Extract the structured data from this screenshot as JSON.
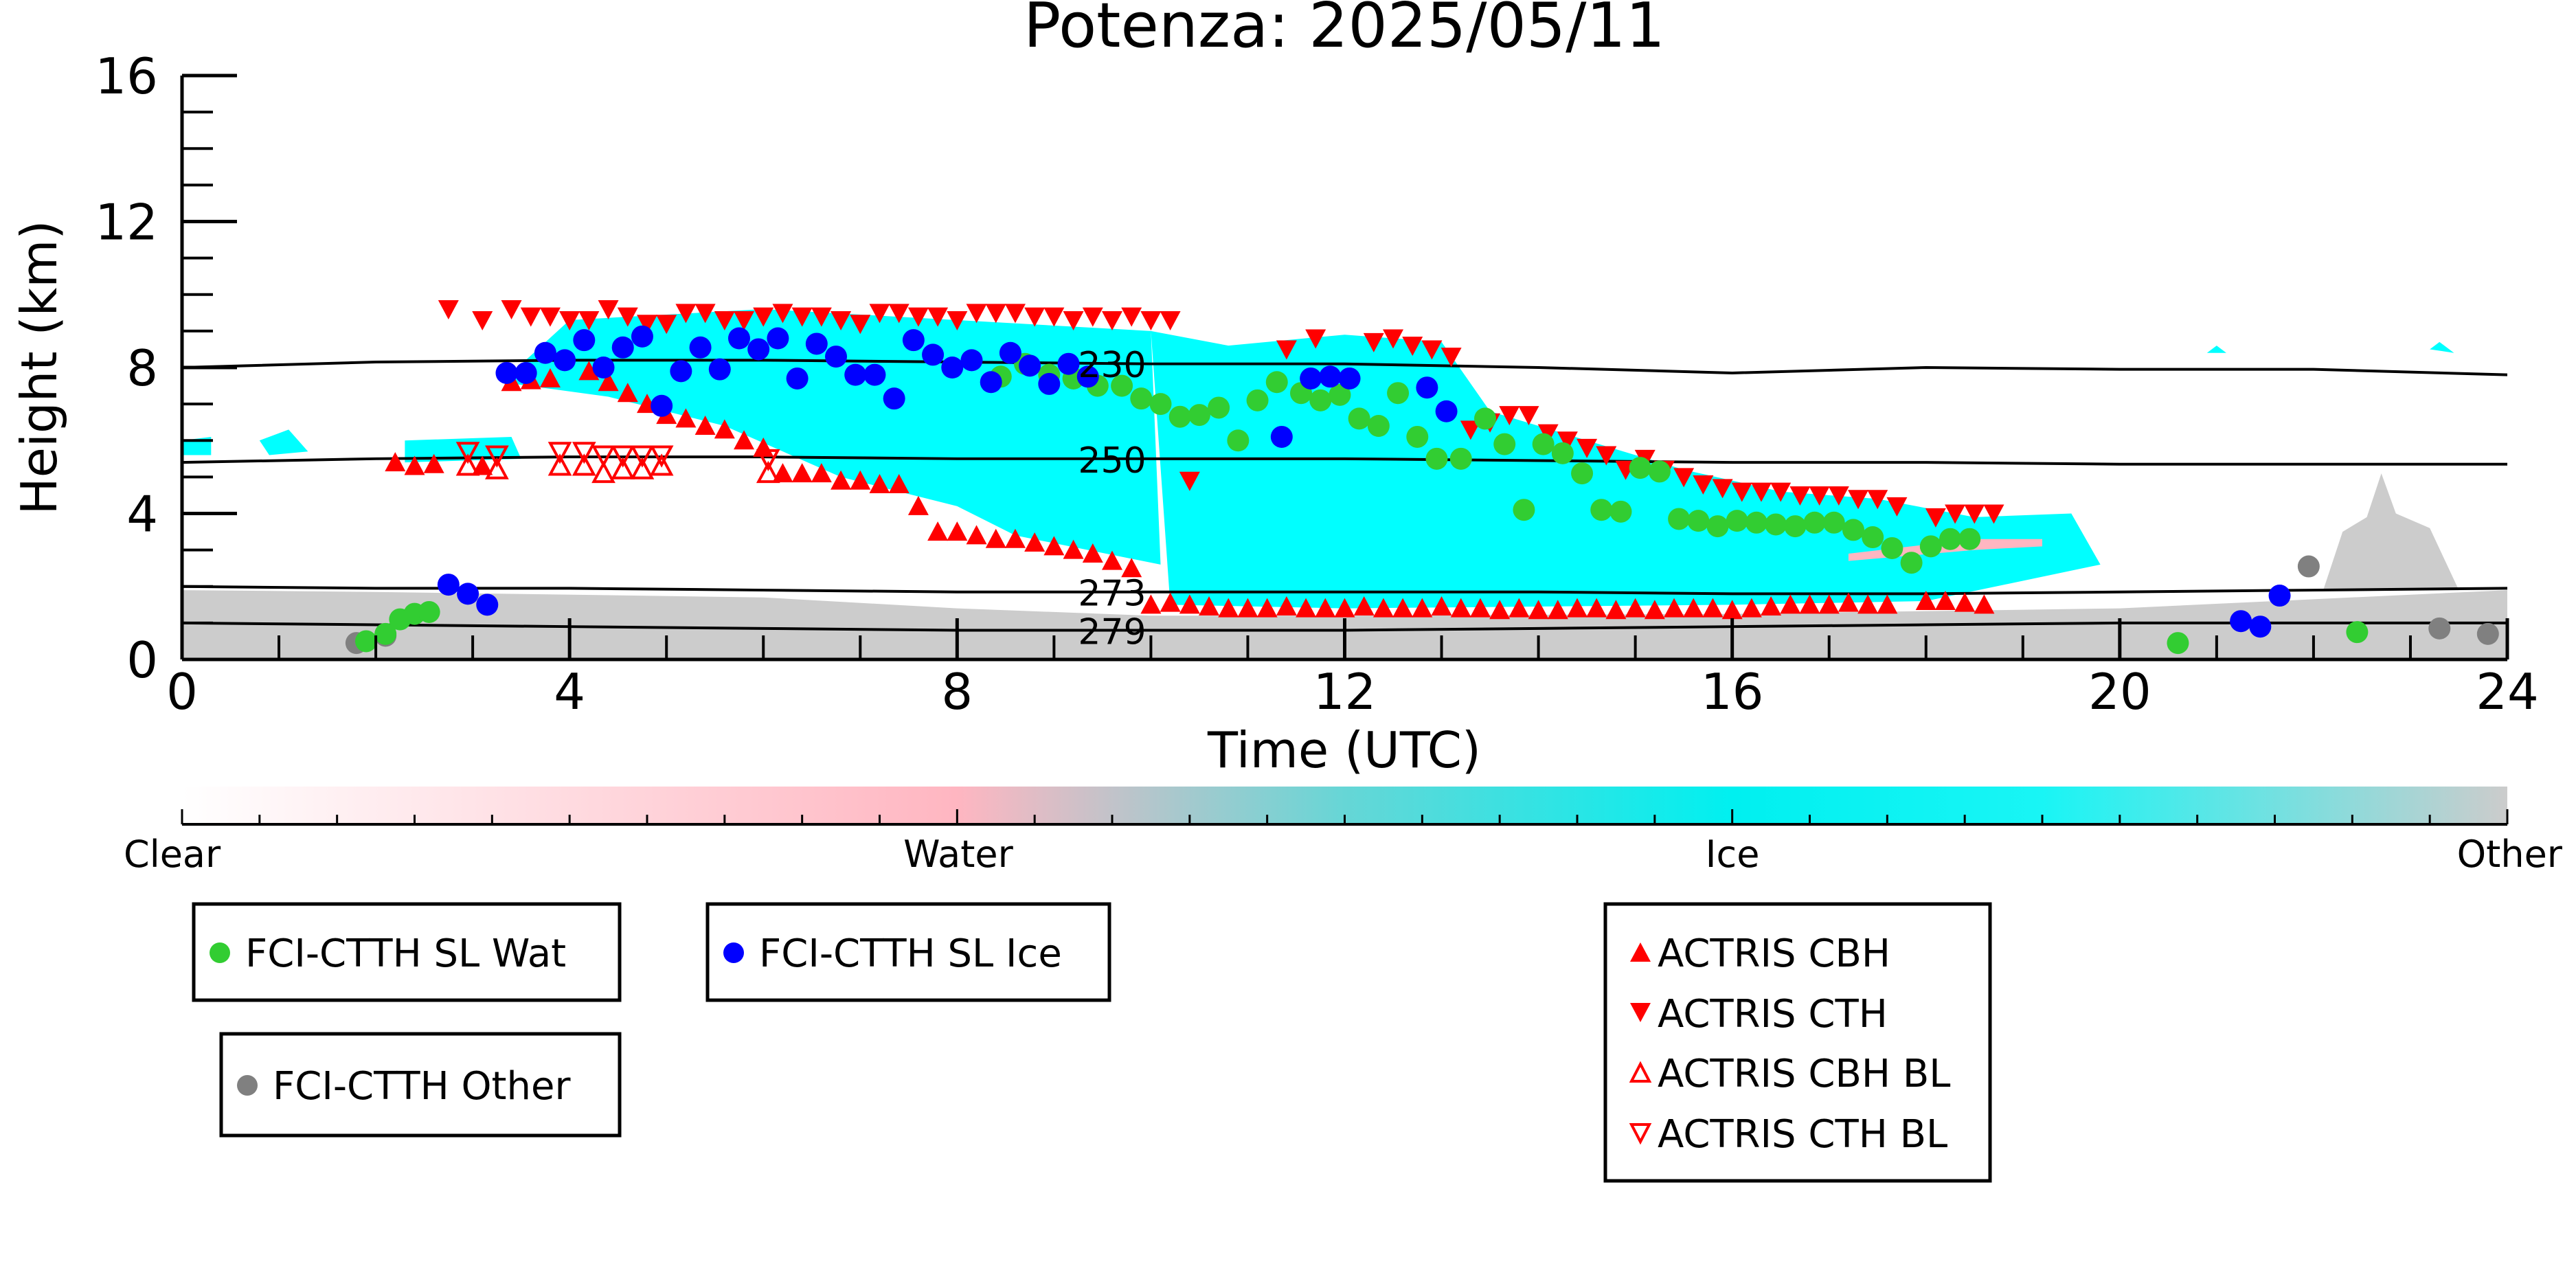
{
  "chart_data": {
    "type": "scatter",
    "title": "Potenza: 2025/05/11",
    "xlabel": "Time (UTC)",
    "ylabel": "Height (km)",
    "xlim": [
      0,
      24
    ],
    "ylim": [
      0,
      16
    ],
    "x_ticks": [
      0,
      4,
      8,
      12,
      16,
      20,
      24
    ],
    "y_ticks": [
      0,
      4,
      8,
      12,
      16
    ],
    "colors": {
      "water": "#ffb6c1",
      "ice": "#00ffff",
      "other": "#cccccc",
      "wat": "#32cd32",
      "icepoint": "#0000ff",
      "otherpoint": "#808080",
      "actris": "#ff0000"
    },
    "colorbar": {
      "labels": [
        "Clear",
        "Water",
        "Ice",
        "Other"
      ]
    },
    "isotherms": [
      {
        "label": "230",
        "x": [
          0,
          2,
          4,
          6,
          8,
          10,
          12,
          14,
          16,
          18,
          20,
          22,
          24
        ],
        "y": [
          8.0,
          8.15,
          8.2,
          8.2,
          8.15,
          8.1,
          8.1,
          8.0,
          7.85,
          8.0,
          7.95,
          7.95,
          7.8
        ]
      },
      {
        "label": "250",
        "x": [
          0,
          2,
          4,
          6,
          8,
          10,
          12,
          14,
          16,
          18,
          20,
          22,
          24
        ],
        "y": [
          5.4,
          5.5,
          5.55,
          5.55,
          5.5,
          5.5,
          5.5,
          5.45,
          5.4,
          5.4,
          5.35,
          5.35,
          5.35
        ]
      },
      {
        "label": "273",
        "x": [
          0,
          2,
          4,
          6,
          8,
          10,
          12,
          14,
          16,
          18,
          20,
          22,
          24
        ],
        "y": [
          2.0,
          1.95,
          1.95,
          1.9,
          1.85,
          1.85,
          1.85,
          1.85,
          1.8,
          1.8,
          1.85,
          1.9,
          1.95
        ]
      },
      {
        "label": "279",
        "x": [
          0,
          2,
          4,
          6,
          8,
          10,
          12,
          14,
          16,
          18,
          20,
          22,
          24
        ],
        "y": [
          1.0,
          0.95,
          0.9,
          0.85,
          0.8,
          0.8,
          0.8,
          0.85,
          0.9,
          0.95,
          1.0,
          1.0,
          1.0
        ]
      }
    ],
    "series": [
      {
        "name": "FCI-CTTH SL Wat",
        "marker": "circle",
        "x": [
          1.9,
          2.1,
          2.25,
          2.4,
          2.55,
          8.45,
          8.7,
          8.95,
          9.2,
          9.45,
          9.7,
          9.9,
          10.1,
          10.3,
          10.5,
          10.7,
          10.9,
          11.1,
          11.3,
          11.55,
          11.75,
          11.95,
          12.15,
          12.35,
          12.55,
          12.75,
          12.95,
          13.2,
          13.45,
          13.65,
          13.85,
          14.05,
          14.25,
          14.45,
          14.65,
          14.85,
          15.05,
          15.25,
          15.45,
          15.65,
          15.85,
          16.05,
          16.25,
          16.45,
          16.65,
          16.85,
          17.05,
          17.25,
          17.45,
          17.65,
          17.85,
          18.05,
          18.25,
          18.45,
          20.6,
          22.45
        ],
        "y": [
          0.5,
          0.7,
          1.1,
          1.25,
          1.3,
          7.75,
          8.1,
          7.8,
          7.7,
          7.5,
          7.5,
          7.15,
          7.0,
          6.65,
          6.7,
          6.9,
          6.0,
          7.1,
          7.6,
          7.3,
          7.1,
          7.25,
          6.6,
          6.4,
          7.3,
          6.1,
          5.5,
          5.5,
          6.6,
          5.9,
          4.1,
          5.9,
          5.65,
          5.1,
          4.1,
          4.05,
          5.25,
          5.15,
          3.85,
          3.8,
          3.65,
          3.8,
          3.75,
          3.7,
          3.65,
          3.75,
          3.75,
          3.55,
          3.35,
          3.05,
          2.65,
          3.1,
          3.3,
          3.3,
          0.45,
          0.75
        ]
      },
      {
        "name": "FCI-CTTH SL Ice",
        "marker": "circle",
        "x": [
          2.75,
          2.95,
          3.15,
          3.35,
          3.55,
          3.75,
          3.95,
          4.15,
          4.35,
          4.55,
          4.75,
          4.95,
          5.15,
          5.35,
          5.55,
          5.75,
          5.95,
          6.15,
          6.35,
          6.55,
          6.75,
          6.95,
          7.15,
          7.35,
          7.55,
          7.75,
          7.95,
          8.15,
          8.35,
          8.55,
          8.75,
          8.95,
          9.15,
          9.35,
          11.35,
          11.65,
          11.85,
          12.05,
          12.85,
          13.05,
          21.25,
          21.45,
          21.65
        ],
        "y": [
          2.05,
          1.8,
          1.5,
          7.85,
          7.85,
          8.4,
          8.2,
          8.75,
          8.0,
          8.55,
          8.85,
          6.95,
          7.9,
          8.55,
          7.95,
          8.8,
          8.5,
          8.8,
          7.7,
          8.65,
          8.3,
          7.8,
          7.8,
          7.15,
          8.75,
          8.35,
          8.0,
          8.2,
          7.6,
          8.4,
          8.05,
          7.55,
          8.1,
          7.75,
          6.1,
          7.7,
          7.75,
          7.7,
          7.45,
          6.8,
          1.05,
          0.9,
          1.75
        ]
      },
      {
        "name": "FCI-CTTH Other",
        "marker": "circle",
        "x": [
          1.8,
          2.1,
          21.95,
          23.3,
          23.8
        ],
        "y": [
          0.45,
          0.65,
          2.55,
          0.85,
          0.7
        ]
      },
      {
        "name": "ACTRIS CBH",
        "marker": "triangle-up",
        "x": [
          2.2,
          2.4,
          2.6,
          3.1,
          3.4,
          3.6,
          3.8,
          4.2,
          4.4,
          4.6,
          4.8,
          5.0,
          5.2,
          5.4,
          5.6,
          5.8,
          6.0,
          6.2,
          6.4,
          6.6,
          6.8,
          7.0,
          7.2,
          7.4,
          7.6,
          7.8,
          8.0,
          8.2,
          8.4,
          8.6,
          8.8,
          9.0,
          9.2,
          9.4,
          9.6,
          9.8,
          10.0,
          10.2,
          10.4,
          10.6,
          10.8,
          11.0,
          11.2,
          11.4,
          11.6,
          11.8,
          12.0,
          12.2,
          12.4,
          12.6,
          12.8,
          13.0,
          13.2,
          13.4,
          13.6,
          13.8,
          14.0,
          14.2,
          14.4,
          14.6,
          14.8,
          15.0,
          15.2,
          15.4,
          15.6,
          15.8,
          16.0,
          16.2,
          16.4,
          16.6,
          16.8,
          17.0,
          17.2,
          17.4,
          17.6,
          18.0,
          18.2,
          18.4,
          18.6
        ],
        "y": [
          5.4,
          5.3,
          5.35,
          5.3,
          7.6,
          7.65,
          7.7,
          7.9,
          7.6,
          7.3,
          7.0,
          6.7,
          6.6,
          6.4,
          6.3,
          6.0,
          5.8,
          5.1,
          5.1,
          5.1,
          4.9,
          4.9,
          4.8,
          4.8,
          4.2,
          3.5,
          3.5,
          3.4,
          3.3,
          3.3,
          3.2,
          3.1,
          3.0,
          2.9,
          2.7,
          2.5,
          1.5,
          1.55,
          1.5,
          1.45,
          1.4,
          1.4,
          1.4,
          1.45,
          1.4,
          1.4,
          1.4,
          1.45,
          1.4,
          1.4,
          1.4,
          1.45,
          1.4,
          1.4,
          1.35,
          1.4,
          1.35,
          1.35,
          1.4,
          1.4,
          1.35,
          1.4,
          1.35,
          1.4,
          1.4,
          1.4,
          1.35,
          1.4,
          1.45,
          1.5,
          1.5,
          1.5,
          1.55,
          1.5,
          1.5,
          1.6,
          1.6,
          1.55,
          1.5
        ]
      },
      {
        "name": "ACTRIS CTH",
        "marker": "triangle-down",
        "x": [
          2.75,
          3.1,
          3.4,
          3.6,
          3.8,
          4.0,
          4.2,
          4.4,
          4.6,
          4.8,
          5.0,
          5.2,
          5.4,
          5.6,
          5.8,
          6.0,
          6.2,
          6.4,
          6.6,
          6.8,
          7.0,
          7.2,
          7.4,
          7.6,
          7.8,
          8.0,
          8.2,
          8.4,
          8.6,
          8.8,
          9.0,
          9.2,
          9.4,
          9.6,
          9.8,
          10.0,
          10.2,
          10.4,
          11.4,
          11.7,
          12.3,
          12.5,
          12.7,
          12.9,
          13.1,
          13.3,
          13.5,
          13.7,
          13.9,
          14.1,
          14.3,
          14.5,
          14.7,
          14.9,
          15.1,
          15.3,
          15.5,
          15.7,
          15.9,
          16.1,
          16.3,
          16.5,
          16.7,
          16.9,
          17.1,
          17.3,
          17.5,
          17.7,
          18.1,
          18.3,
          18.5,
          18.7
        ],
        "y": [
          9.6,
          9.3,
          9.6,
          9.4,
          9.4,
          9.3,
          9.3,
          9.6,
          9.4,
          9.2,
          9.2,
          9.5,
          9.5,
          9.3,
          9.3,
          9.4,
          9.5,
          9.4,
          9.4,
          9.3,
          9.2,
          9.5,
          9.5,
          9.4,
          9.4,
          9.3,
          9.5,
          9.5,
          9.5,
          9.4,
          9.4,
          9.3,
          9.4,
          9.3,
          9.4,
          9.3,
          9.3,
          4.9,
          8.5,
          8.8,
          8.7,
          8.8,
          8.6,
          8.5,
          8.3,
          6.3,
          6.5,
          6.7,
          6.7,
          6.2,
          6.0,
          5.8,
          5.6,
          5.2,
          5.5,
          5.2,
          5.0,
          4.8,
          4.7,
          4.6,
          4.6,
          4.6,
          4.5,
          4.5,
          4.5,
          4.4,
          4.4,
          4.2,
          3.9,
          4.0,
          4.0,
          4.0
        ]
      },
      {
        "name": "ACTRIS CBH BL",
        "marker": "triangle-up-open",
        "x": [
          2.95,
          3.25,
          3.9,
          4.15,
          4.35,
          4.55,
          4.75,
          4.95,
          6.05
        ],
        "y": [
          5.3,
          5.2,
          5.3,
          5.3,
          5.1,
          5.2,
          5.2,
          5.3,
          5.1
        ]
      },
      {
        "name": "ACTRIS CTH BL",
        "marker": "triangle-down-open",
        "x": [
          2.95,
          3.25,
          3.9,
          4.15,
          4.35,
          4.55,
          4.75,
          4.95,
          6.05
        ],
        "y": [
          5.7,
          5.6,
          5.7,
          5.7,
          5.6,
          5.6,
          5.6,
          5.6,
          5.5
        ]
      }
    ]
  },
  "legend_labels": {
    "wat": "FCI-CTTH SL Wat",
    "ice": "FCI-CTTH SL Ice",
    "other": "FCI-CTTH Other",
    "cbh": "ACTRIS CBH",
    "cth": "ACTRIS CTH",
    "cbh_bl": "ACTRIS CBH BL",
    "cth_bl": "ACTRIS CTH BL"
  }
}
